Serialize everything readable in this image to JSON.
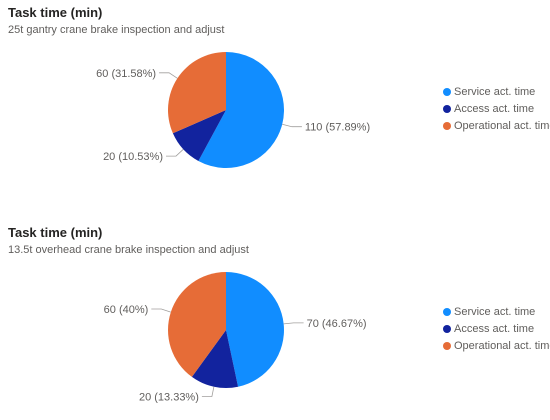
{
  "chart_data": [
    {
      "type": "pie",
      "title": "Task time (min)",
      "subtitle": "25t gantry crane brake inspection and adjust",
      "slices": [
        {
          "label": "Service act. time",
          "value": 110,
          "data_label": "110 (57.89%)",
          "color": "#118DFF"
        },
        {
          "label": "Access act. time",
          "value": 20,
          "data_label": "20 (10.53%)",
          "color": "#12239E"
        },
        {
          "label": "Operational act. time",
          "value": 60,
          "data_label": "60 (31.58%)",
          "color": "#E66C37"
        }
      ],
      "legend_position": "right"
    },
    {
      "type": "pie",
      "title": "Task time (min)",
      "subtitle": "13.5t overhead crane brake inspection and adjust",
      "slices": [
        {
          "label": "Service act. time",
          "value": 70,
          "data_label": "70 (46.67%)",
          "color": "#118DFF"
        },
        {
          "label": "Access act. time",
          "value": 20,
          "data_label": "20 (13.33%)",
          "color": "#12239E"
        },
        {
          "label": "Operational act. time",
          "value": 60,
          "data_label": "60 (40%)",
          "color": "#E66C37"
        }
      ],
      "legend_position": "right"
    }
  ]
}
